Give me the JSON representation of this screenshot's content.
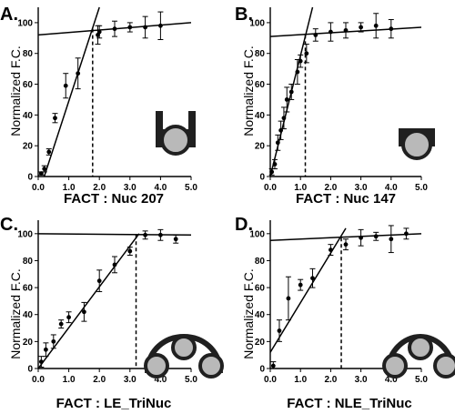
{
  "chart_data": [
    {
      "panel_label": "A.",
      "type": "scatter",
      "title": "",
      "xlabel": "FACT : Nuc 207",
      "ylabel": "Normalized F.C.",
      "xlim": [
        0,
        5
      ],
      "ylim": [
        0,
        110
      ],
      "xticks": [
        "0.0",
        "1.0",
        "2.0",
        "3.0",
        "4.0",
        "5.0"
      ],
      "yticks": [
        "0",
        "20",
        "40",
        "60",
        "80",
        "100"
      ],
      "grid": false,
      "series": [
        {
          "x": [
            0.1,
            0.2,
            0.35,
            0.55,
            0.9,
            1.3,
            1.95,
            2.0,
            2.5,
            3.0,
            3.5,
            4.0
          ],
          "y": [
            2,
            5,
            16,
            38,
            59,
            67,
            92,
            94,
            96,
            97,
            97,
            98
          ],
          "err": [
            1,
            2,
            2,
            3,
            8,
            10,
            6,
            4,
            5,
            3,
            7,
            9
          ]
        }
      ],
      "fit_lines": [
        {
          "x": [
            0,
            2.0
          ],
          "y": [
            -12,
            110
          ]
        },
        {
          "x": [
            0,
            5
          ],
          "y": [
            92,
            100
          ]
        }
      ],
      "breakpoint_x": 1.78,
      "breakpoint_y": 96,
      "icon": "single-nucleosome-icon"
    },
    {
      "panel_label": "B.",
      "type": "scatter",
      "title": "",
      "xlabel": "FACT : Nuc 147",
      "ylabel": "Normalized F.C.",
      "xlim": [
        0,
        5
      ],
      "ylim": [
        0,
        110
      ],
      "xticks": [
        "0.0",
        "1.0",
        "2.0",
        "3.0",
        "4.0",
        "5.0"
      ],
      "yticks": [
        "0",
        "20",
        "40",
        "60",
        "80",
        "100"
      ],
      "grid": false,
      "series": [
        {
          "x": [
            0.05,
            0.15,
            0.25,
            0.35,
            0.45,
            0.55,
            0.7,
            0.9,
            1.0,
            1.2,
            1.5,
            2.0,
            2.5,
            3.0,
            3.5,
            4.0
          ],
          "y": [
            3,
            8,
            22,
            30,
            38,
            50,
            55,
            68,
            75,
            80,
            92,
            94,
            95,
            97,
            98,
            96
          ],
          "err": [
            2,
            3,
            5,
            6,
            7,
            8,
            5,
            8,
            4,
            6,
            4,
            6,
            5,
            3,
            8,
            6
          ]
        }
      ],
      "fit_lines": [
        {
          "x": [
            0,
            1.4
          ],
          "y": [
            0,
            110
          ]
        },
        {
          "x": [
            0,
            5
          ],
          "y": [
            91,
            97
          ]
        }
      ],
      "breakpoint_x": 1.16,
      "breakpoint_y": 92,
      "icon": "free-nucleosome-icon"
    },
    {
      "panel_label": "C.",
      "type": "scatter",
      "title": "",
      "xlabel": "FACT : LE_TriNuc",
      "ylabel": "Normalized F.C.",
      "xlim": [
        0,
        5
      ],
      "ylim": [
        0,
        110
      ],
      "xticks": [
        "0.0",
        "1.0",
        "2.0",
        "3.0",
        "4.0",
        "5.0"
      ],
      "yticks": [
        "0",
        "20",
        "40",
        "60",
        "80",
        "100"
      ],
      "grid": false,
      "series": [
        {
          "x": [
            0.1,
            0.25,
            0.5,
            0.75,
            1.0,
            1.5,
            2.0,
            2.5,
            3.0,
            3.5,
            4.0,
            4.5
          ],
          "y": [
            5,
            14,
            20,
            33,
            38,
            42,
            65,
            77,
            87,
            99,
            99,
            96
          ],
          "err": [
            4,
            5,
            5,
            3,
            4,
            7,
            8,
            6,
            3,
            3,
            4,
            3
          ]
        }
      ],
      "fit_lines": [
        {
          "x": [
            0,
            3.3
          ],
          "y": [
            0,
            100
          ]
        },
        {
          "x": [
            0,
            5
          ],
          "y": [
            100,
            99
          ]
        }
      ],
      "breakpoint_x": 3.2,
      "breakpoint_y": 99,
      "icon": "linear-trinucleosome-icon"
    },
    {
      "panel_label": "D.",
      "type": "scatter",
      "title": "",
      "xlabel": "FACT : NLE_TriNuc",
      "ylabel": "Normalized F.C.",
      "xlim": [
        0,
        5
      ],
      "ylim": [
        0,
        110
      ],
      "xticks": [
        "0.0",
        "1.0",
        "2.0",
        "3.0",
        "4.0",
        "5.0"
      ],
      "yticks": [
        "0",
        "20",
        "40",
        "60",
        "80",
        "100"
      ],
      "grid": false,
      "series": [
        {
          "x": [
            0.1,
            0.3,
            0.6,
            1.0,
            1.4,
            2.0,
            2.5,
            3.0,
            3.5,
            4.0,
            4.5
          ],
          "y": [
            2,
            28,
            52,
            62,
            67,
            88,
            92,
            97,
            98,
            96,
            100
          ],
          "err": [
            3,
            8,
            16,
            4,
            7,
            4,
            4,
            6,
            3,
            10,
            4
          ]
        }
      ],
      "fit_lines": [
        {
          "x": [
            0,
            2.5
          ],
          "y": [
            12,
            104
          ]
        },
        {
          "x": [
            0,
            5
          ],
          "y": [
            95,
            100
          ]
        }
      ],
      "breakpoint_x": 2.35,
      "breakpoint_y": 97,
      "icon": "nucleosome-trio-icon"
    }
  ]
}
